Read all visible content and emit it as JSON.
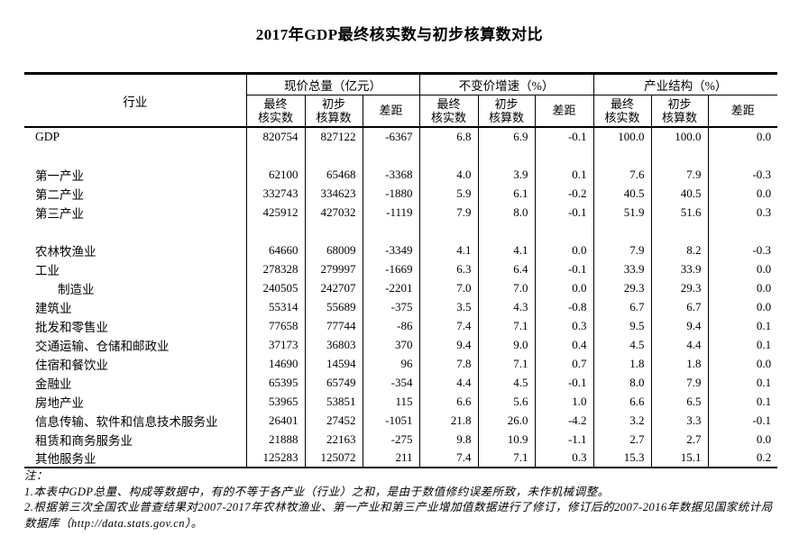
{
  "page": {
    "title": "2017年GDP最终核实数与初步核算数对比"
  },
  "table": {
    "industry_header": "行业",
    "groups": [
      "现价总量（亿元）",
      "不变价增速（%）",
      "产业结构（%）"
    ],
    "sub_headers": [
      "最终\n核实数",
      "初步\n核算数",
      "差距",
      "最终\n核实数",
      "初步\n核算数",
      "差距",
      "最终\n核实数",
      "初步\n核算数",
      "差距"
    ],
    "rows": [
      {
        "name": "GDP",
        "indent": false,
        "blank": false,
        "values": [
          "820754",
          "827122",
          "-6367",
          "6.8",
          "6.9",
          "-0.1",
          "100.0",
          "100.0",
          "0.0"
        ]
      },
      {
        "name": "",
        "indent": false,
        "blank": true,
        "values": [
          "",
          "",
          "",
          "",
          "",
          "",
          "",
          "",
          ""
        ]
      },
      {
        "name": "第一产业",
        "indent": false,
        "blank": false,
        "values": [
          "62100",
          "65468",
          "-3368",
          "4.0",
          "3.9",
          "0.1",
          "7.6",
          "7.9",
          "-0.3"
        ]
      },
      {
        "name": "第二产业",
        "indent": false,
        "blank": false,
        "values": [
          "332743",
          "334623",
          "-1880",
          "5.9",
          "6.1",
          "-0.2",
          "40.5",
          "40.5",
          "0.0"
        ]
      },
      {
        "name": "第三产业",
        "indent": false,
        "blank": false,
        "values": [
          "425912",
          "427032",
          "-1119",
          "7.9",
          "8.0",
          "-0.1",
          "51.9",
          "51.6",
          "0.3"
        ]
      },
      {
        "name": "",
        "indent": false,
        "blank": true,
        "values": [
          "",
          "",
          "",
          "",
          "",
          "",
          "",
          "",
          ""
        ]
      },
      {
        "name": "农林牧渔业",
        "indent": false,
        "blank": false,
        "values": [
          "64660",
          "68009",
          "-3349",
          "4.1",
          "4.1",
          "0.0",
          "7.9",
          "8.2",
          "-0.3"
        ]
      },
      {
        "name": "工业",
        "indent": false,
        "blank": false,
        "values": [
          "278328",
          "279997",
          "-1669",
          "6.3",
          "6.4",
          "-0.1",
          "33.9",
          "33.9",
          "0.0"
        ]
      },
      {
        "name": "制造业",
        "indent": true,
        "blank": false,
        "values": [
          "240505",
          "242707",
          "-2201",
          "7.0",
          "7.0",
          "0.0",
          "29.3",
          "29.3",
          "0.0"
        ]
      },
      {
        "name": "建筑业",
        "indent": false,
        "blank": false,
        "values": [
          "55314",
          "55689",
          "-375",
          "3.5",
          "4.3",
          "-0.8",
          "6.7",
          "6.7",
          "0.0"
        ]
      },
      {
        "name": "批发和零售业",
        "indent": false,
        "blank": false,
        "values": [
          "77658",
          "77744",
          "-86",
          "7.4",
          "7.1",
          "0.3",
          "9.5",
          "9.4",
          "0.1"
        ]
      },
      {
        "name": "交通运输、仓储和邮政业",
        "indent": false,
        "blank": false,
        "values": [
          "37173",
          "36803",
          "370",
          "9.4",
          "9.0",
          "0.4",
          "4.5",
          "4.4",
          "0.1"
        ]
      },
      {
        "name": "住宿和餐饮业",
        "indent": false,
        "blank": false,
        "values": [
          "14690",
          "14594",
          "96",
          "7.8",
          "7.1",
          "0.7",
          "1.8",
          "1.8",
          "0.0"
        ]
      },
      {
        "name": "金融业",
        "indent": false,
        "blank": false,
        "values": [
          "65395",
          "65749",
          "-354",
          "4.4",
          "4.5",
          "-0.1",
          "8.0",
          "7.9",
          "0.1"
        ]
      },
      {
        "name": "房地产业",
        "indent": false,
        "blank": false,
        "values": [
          "53965",
          "53851",
          "115",
          "6.6",
          "5.6",
          "1.0",
          "6.6",
          "6.5",
          "0.1"
        ]
      },
      {
        "name": "信息传输、软件和信息技术服务业",
        "indent": false,
        "blank": false,
        "values": [
          "26401",
          "27452",
          "-1051",
          "21.8",
          "26.0",
          "-4.2",
          "3.2",
          "3.3",
          "-0.1"
        ]
      },
      {
        "name": "租赁和商务服务业",
        "indent": false,
        "blank": false,
        "values": [
          "21888",
          "22163",
          "-275",
          "9.8",
          "10.9",
          "-1.1",
          "2.7",
          "2.7",
          "0.0"
        ]
      },
      {
        "name": "其他服务业",
        "indent": false,
        "blank": false,
        "values": [
          "125283",
          "125072",
          "211",
          "7.4",
          "7.1",
          "0.3",
          "15.3",
          "15.1",
          "0.2"
        ]
      }
    ]
  },
  "notes": {
    "label": "注：",
    "items": [
      "1.本表中GDP总量、构成等数据中，有的不等于各产业（行业）之和，是由于数值修约误差所致，未作机械调整。",
      "2.根据第三次全国农业普查结果对2007-2017年农林牧渔业、第一产业和第三产业增加值数据进行了修订，修订后的2007-2016年数据见国家统计局数据库（http://data.stats.gov.cn）。"
    ]
  }
}
